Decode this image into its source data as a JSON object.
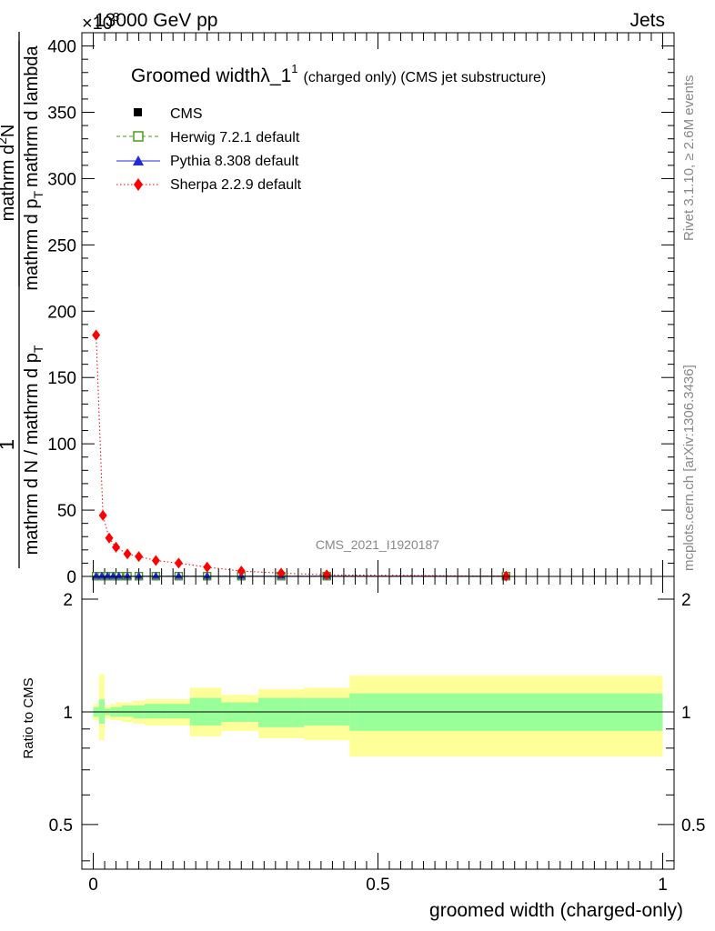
{
  "header": {
    "energy": "13000 GeV pp",
    "process": "Jets",
    "exponent": "×10",
    "exponent_power": "3"
  },
  "side_labels": {
    "rivet": "Rivet 3.1.10, ≥ 2.6M events",
    "mcplots": "mcplots.cern.ch [arXiv:1306.3436]"
  },
  "analysis_id": "CMS_2021_I1920187",
  "chart_data": [
    {
      "type": "line",
      "title": "Groomed width",
      "title_symbol": "λ_1",
      "title_superscript": "1",
      "title_suffix": "(charged only) (CMS jet substructure)",
      "xlabel": "groomed width (charged-only)",
      "ylabel": {
        "one": "1",
        "left_fraction": "mathrm d N / mathrm d p",
        "left_sub": "T",
        "top_fraction": "mathrm d",
        "top_super": "2",
        "top_rest": "N",
        "bottom_fraction": "mathrm d p",
        "bottom_sub": "T",
        "bottom_rest": "mathrm d lambda"
      },
      "xlim": [
        -0.02,
        1.02
      ],
      "ylim": [
        0,
        410
      ],
      "x_ticks": [
        "0",
        "0.5",
        "1"
      ],
      "y_ticks": [
        "0",
        "50",
        "100",
        "150",
        "200",
        "250",
        "300",
        "350",
        "400"
      ],
      "legend_position": "top-left",
      "series": [
        {
          "name": "CMS",
          "color": "#000000",
          "marker": "square",
          "x": [
            0.005,
            0.015,
            0.025,
            0.035,
            0.045,
            0.06,
            0.08,
            0.11,
            0.15,
            0.2,
            0.26,
            0.33,
            0.41,
            0.725
          ],
          "y": [
            0.2,
            0.2,
            0.2,
            0.2,
            0.2,
            0.2,
            0.2,
            0.2,
            0.2,
            0.2,
            0.2,
            0.2,
            0.2,
            0.2
          ]
        },
        {
          "name": "Herwig 7.2.1 default",
          "color": "#4c9a1c",
          "marker": "open-square",
          "x": [
            0.005,
            0.015,
            0.025,
            0.035,
            0.045,
            0.06,
            0.08,
            0.11,
            0.15,
            0.2,
            0.26,
            0.33,
            0.41,
            0.725
          ],
          "y": [
            0.2,
            0.2,
            0.2,
            0.2,
            0.2,
            0.2,
            0.2,
            0.2,
            0.2,
            0.2,
            0.2,
            0.2,
            0.2,
            0.2
          ]
        },
        {
          "name": "Pythia 8.308 default",
          "color": "#1f2bd6",
          "marker": "triangle",
          "x": [
            0.005,
            0.015,
            0.025,
            0.035,
            0.045,
            0.06,
            0.08,
            0.11,
            0.15,
            0.2,
            0.26,
            0.33,
            0.41,
            0.725
          ],
          "y": [
            0.2,
            0.2,
            0.2,
            0.2,
            0.2,
            0.2,
            0.2,
            0.2,
            0.2,
            0.2,
            0.2,
            0.2,
            0.2,
            0.2
          ]
        },
        {
          "name": "Sherpa 2.2.9 default",
          "color": "#ff0000",
          "marker": "diamond",
          "x": [
            0.005,
            0.017,
            0.028,
            0.04,
            0.06,
            0.08,
            0.11,
            0.15,
            0.2,
            0.26,
            0.33,
            0.41,
            0.725
          ],
          "y": [
            182,
            46,
            29,
            22,
            17,
            15,
            12,
            10,
            7,
            4,
            2.5,
            1.2,
            0.2
          ]
        }
      ]
    },
    {
      "type": "area",
      "ylabel": "Ratio to CMS",
      "xlim": [
        -0.02,
        1.02
      ],
      "ylim": [
        0.38,
        2.3
      ],
      "x_ticks": [
        "0",
        "0.5",
        "1"
      ],
      "y_ticks": [
        "0.5",
        "1",
        "2"
      ],
      "reference_line": 1,
      "bins": [
        {
          "x_low": 0.0,
          "x_high": 0.01,
          "green": [
            0.97,
            1.03
          ],
          "yellow": [
            0.95,
            1.05
          ]
        },
        {
          "x_low": 0.01,
          "x_high": 0.02,
          "green": [
            0.93,
            1.08
          ],
          "yellow": [
            0.84,
            1.26
          ]
        },
        {
          "x_low": 0.02,
          "x_high": 0.03,
          "green": [
            0.98,
            1.02
          ],
          "yellow": [
            0.96,
            1.04
          ]
        },
        {
          "x_low": 0.03,
          "x_high": 0.04,
          "green": [
            0.97,
            1.03
          ],
          "yellow": [
            0.95,
            1.05
          ]
        },
        {
          "x_low": 0.04,
          "x_high": 0.05,
          "green": [
            0.97,
            1.03
          ],
          "yellow": [
            0.95,
            1.06
          ]
        },
        {
          "x_low": 0.05,
          "x_high": 0.07,
          "green": [
            0.97,
            1.04
          ],
          "yellow": [
            0.94,
            1.06
          ]
        },
        {
          "x_low": 0.07,
          "x_high": 0.09,
          "green": [
            0.96,
            1.04
          ],
          "yellow": [
            0.93,
            1.07
          ]
        },
        {
          "x_low": 0.09,
          "x_high": 0.13,
          "green": [
            0.96,
            1.05
          ],
          "yellow": [
            0.92,
            1.08
          ]
        },
        {
          "x_low": 0.13,
          "x_high": 0.17,
          "green": [
            0.96,
            1.05
          ],
          "yellow": [
            0.92,
            1.08
          ]
        },
        {
          "x_low": 0.17,
          "x_high": 0.225,
          "green": [
            0.92,
            1.09
          ],
          "yellow": [
            0.86,
            1.16
          ]
        },
        {
          "x_low": 0.225,
          "x_high": 0.29,
          "green": [
            0.94,
            1.06
          ],
          "yellow": [
            0.89,
            1.11
          ]
        },
        {
          "x_low": 0.29,
          "x_high": 0.37,
          "green": [
            0.91,
            1.09
          ],
          "yellow": [
            0.85,
            1.15
          ]
        },
        {
          "x_low": 0.37,
          "x_high": 0.45,
          "green": [
            0.92,
            1.09
          ],
          "yellow": [
            0.84,
            1.16
          ]
        },
        {
          "x_low": 0.45,
          "x_high": 1.0,
          "green": [
            0.89,
            1.12
          ],
          "yellow": [
            0.76,
            1.25
          ]
        }
      ]
    }
  ]
}
